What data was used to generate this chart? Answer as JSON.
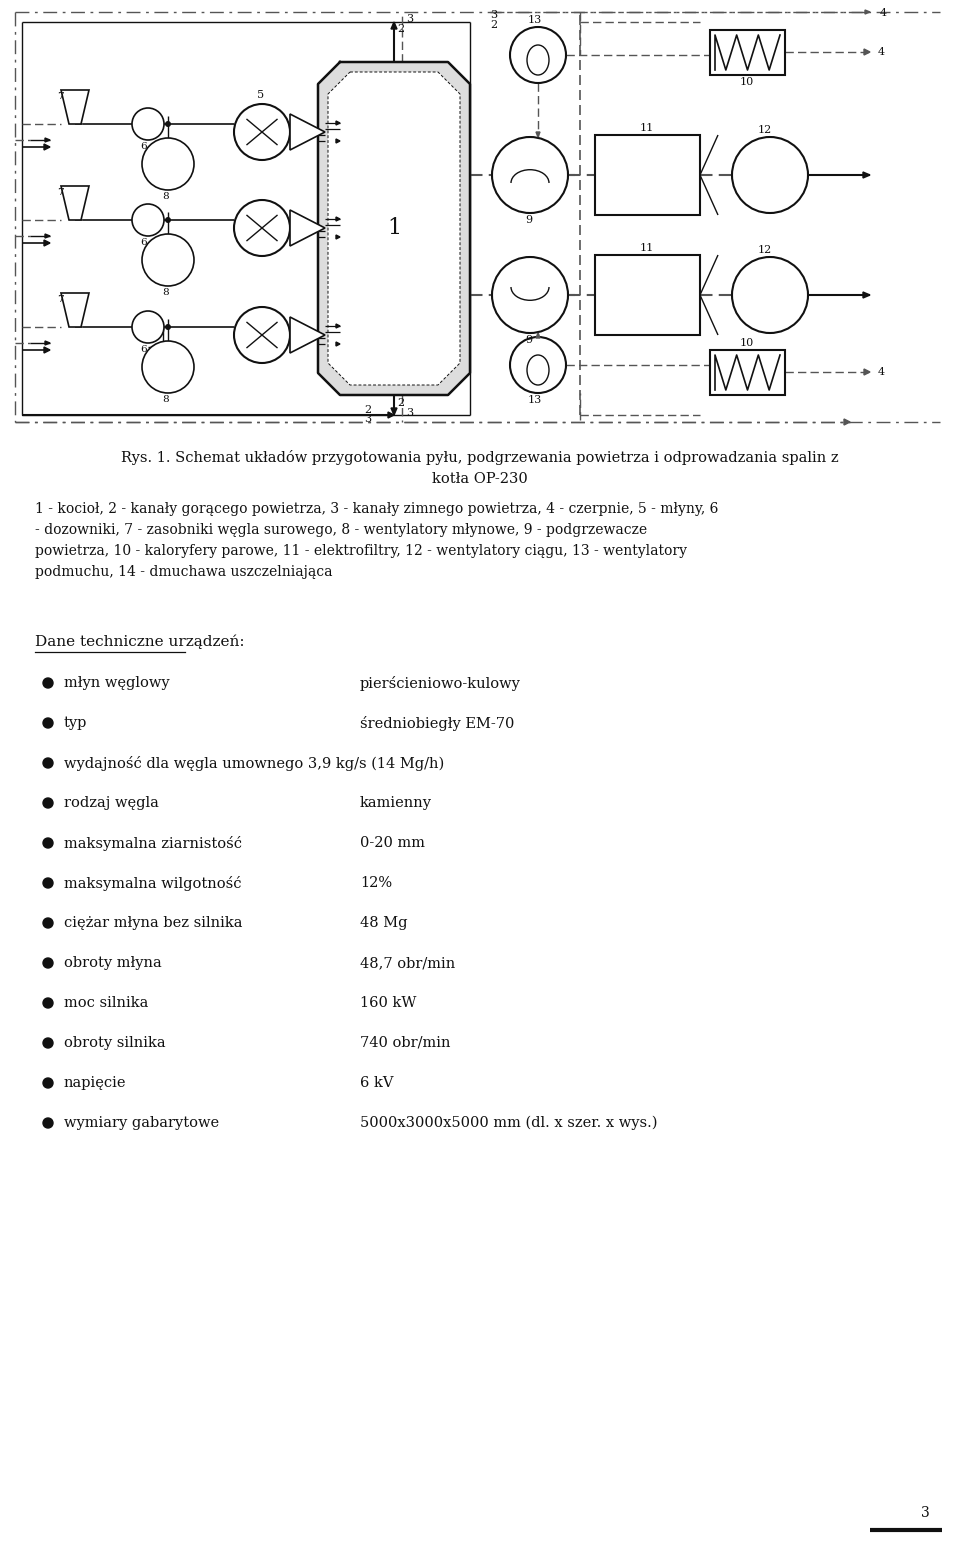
{
  "title_line1": "Rys. 1. Schemat układów przygotowania pyłu, podgrzewania powietrza i odprowadzania spalin z",
  "title_line2": "kotła OP-230",
  "caption_line1": "1 - kocioł, 2 - kanały gorącego powietrza, 3 - kanały zimnego powietrza, 4 - czerpnie, 5 - młyny, 6",
  "caption_line2": "- dozowniki, 7 - zasobniki węgla surowego, 8 - wentylatory młynowe, 9 - podgrzewacze",
  "caption_line3": "powietrza, 10 - kaloryfery parowe, 11 - elektrofiltry, 12 - wentylatory ciągu, 13 - wentylatory",
  "caption_line4": "podmuchu, 14 - dmuchawa uszczelniająca",
  "section_title": "Dane techniczne urządzeń:",
  "bullet_items": [
    [
      "młyn węglowy",
      "pierścieniowo-kulowy"
    ],
    [
      "typ",
      "średniobiegły EM-70"
    ],
    [
      "wydajność dla węgla umownego 3,9 kg/s (14 Mg/h)",
      ""
    ],
    [
      "rodzaj węgla",
      "kamienny"
    ],
    [
      "maksymalna ziarnistość",
      "0-20 mm"
    ],
    [
      "maksymalna wilgotność",
      "12%"
    ],
    [
      "ciężar młyna bez silnika",
      "48 Mg"
    ],
    [
      "obroty młyna",
      "48,7 obr/min"
    ],
    [
      "moc silnika",
      "160 kW"
    ],
    [
      "obroty silnika",
      "740 obr/min"
    ],
    [
      "napięcie",
      "6 kV"
    ],
    [
      "wymiary gabarytowe",
      "5000x3000x5000 mm (dl. x szer. x wys.)"
    ]
  ],
  "page_number": "3",
  "bg_color": "#ffffff",
  "text_color": "#111111"
}
